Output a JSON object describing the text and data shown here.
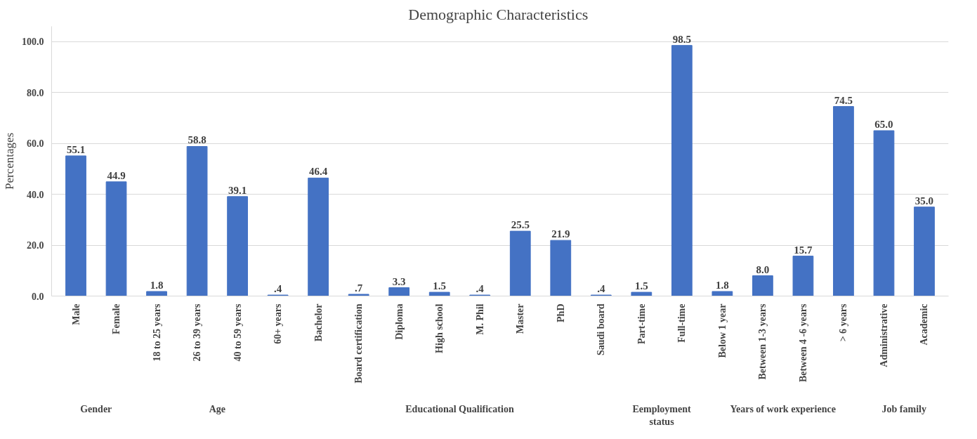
{
  "chart_data": {
    "type": "bar",
    "title": "Demographic  Characteristics",
    "ylabel": "Percentages",
    "categories": [
      "Male",
      "Female",
      "18 to 25 years",
      "26 to 39 years",
      "40 to 59 years",
      "60+ years",
      "Bachelor",
      "Board certification",
      "Diploma",
      "High school",
      "M. Phil",
      "Master",
      "PhD",
      "Saudi board",
      "Part-time",
      "Full-time",
      "Below 1 year",
      "Between 1-3 years",
      "Between 4 -6 years",
      "> 6 years",
      "Administrative",
      "Academic"
    ],
    "series": [
      {
        "color": "#4472c4",
        "values": [
          55.1,
          44.9,
          null,
          null,
          null,
          null,
          null,
          null,
          null,
          null,
          null,
          null,
          null,
          null,
          null,
          null,
          null,
          null,
          null,
          null,
          null,
          null
        ],
        "value_labels": [
          "55.1",
          "44.9",
          null,
          null,
          null,
          null,
          null,
          null,
          null,
          null,
          null,
          null,
          null,
          null,
          null,
          null,
          null,
          null,
          null,
          null,
          null,
          null
        ]
      },
      {
        "color": "#4472c4",
        "values": [
          null,
          null,
          1.8,
          58.8,
          39.1,
          0.4,
          null,
          null,
          null,
          null,
          null,
          null,
          null,
          null,
          null,
          null,
          null,
          null,
          null,
          null,
          null,
          null
        ],
        "value_labels": [
          null,
          null,
          "1.8",
          "58.8",
          "39.1",
          ".4",
          null,
          null,
          null,
          null,
          null,
          null,
          null,
          null,
          null,
          null,
          null,
          null,
          null,
          null,
          null,
          null
        ]
      },
      {
        "color": "#4472c4",
        "values": [
          null,
          null,
          null,
          null,
          null,
          null,
          46.4,
          0.7,
          3.3,
          1.5,
          0.4,
          25.5,
          21.9,
          0.4,
          null,
          null,
          null,
          null,
          null,
          null,
          null,
          null
        ],
        "value_labels": [
          null,
          null,
          null,
          null,
          null,
          null,
          "46.4",
          ".7",
          "3.3",
          "1.5",
          ".4",
          "25.5",
          "21.9",
          ".4",
          null,
          null,
          null,
          null,
          null,
          null,
          null,
          null
        ]
      },
      {
        "color": "#4472c4",
        "values": [
          null,
          null,
          null,
          null,
          null,
          null,
          null,
          null,
          null,
          null,
          null,
          null,
          null,
          null,
          1.5,
          98.5,
          null,
          null,
          null,
          null,
          null,
          null
        ],
        "value_labels": [
          null,
          null,
          null,
          null,
          null,
          null,
          null,
          null,
          null,
          null,
          null,
          null,
          null,
          null,
          "1.5",
          "98.5",
          null,
          null,
          null,
          null,
          null,
          null
        ]
      },
      {
        "color": "#4472c4",
        "values": [
          null,
          null,
          null,
          null,
          null,
          null,
          null,
          null,
          null,
          null,
          null,
          null,
          null,
          null,
          null,
          null,
          1.8,
          8.0,
          15.7,
          74.5,
          null,
          null
        ],
        "value_labels": [
          null,
          null,
          null,
          null,
          null,
          null,
          null,
          null,
          null,
          null,
          null,
          null,
          null,
          null,
          null,
          null,
          "1.8",
          "8.0",
          "15.7",
          "74.5",
          null,
          null
        ]
      },
      {
        "color": "#4472c4",
        "values": [
          null,
          null,
          null,
          null,
          null,
          null,
          null,
          null,
          null,
          null,
          null,
          null,
          null,
          null,
          null,
          null,
          null,
          null,
          null,
          null,
          65.0,
          35.0
        ],
        "value_labels": [
          null,
          null,
          null,
          null,
          null,
          null,
          null,
          null,
          null,
          null,
          null,
          null,
          null,
          null,
          null,
          null,
          null,
          null,
          null,
          null,
          "65.0",
          "35.0"
        ]
      }
    ],
    "annotations": [
      "Gender",
      "Age",
      "Educational Qualification",
      "Eemployment\nstatus",
      "Years of work experience",
      "Job family"
    ],
    "ylim": [
      0,
      106
    ],
    "yticks": [
      {
        "value": 0,
        "label": "0.0"
      },
      {
        "value": 20,
        "label": "20.0"
      },
      {
        "value": 40,
        "label": "40.0"
      },
      {
        "value": 60,
        "label": "60.0"
      },
      {
        "value": 80,
        "label": "80.0"
      },
      {
        "value": 100,
        "label": "100.0"
      }
    ],
    "grid": "y"
  }
}
